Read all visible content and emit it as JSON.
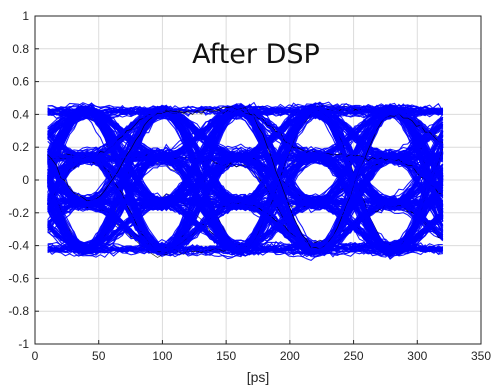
{
  "chart_data": {
    "type": "line",
    "title": "",
    "annotation": "After DSP",
    "xlabel": "[ps]",
    "ylabel": "",
    "xlim": [
      0,
      350
    ],
    "ylim": [
      -1,
      1
    ],
    "xticks": [
      0,
      50,
      100,
      150,
      200,
      250,
      300,
      350
    ],
    "yticks": [
      -1,
      -0.8,
      -0.6,
      -0.4,
      -0.2,
      0,
      0.2,
      0.4,
      0.6,
      0.8,
      1
    ],
    "grid": true,
    "box": true,
    "series_color": "#0000ff",
    "edge_color": "#000000",
    "eye_diagram": {
      "x_start": 10,
      "x_end": 320,
      "symbol_period": 60,
      "crossing_times": [
        40,
        100,
        160,
        220,
        280,
        340
      ],
      "levels": [
        -0.42,
        -0.14,
        0.14,
        0.42
      ],
      "trace_count": 420,
      "noise_amplitude": 0.035
    }
  }
}
